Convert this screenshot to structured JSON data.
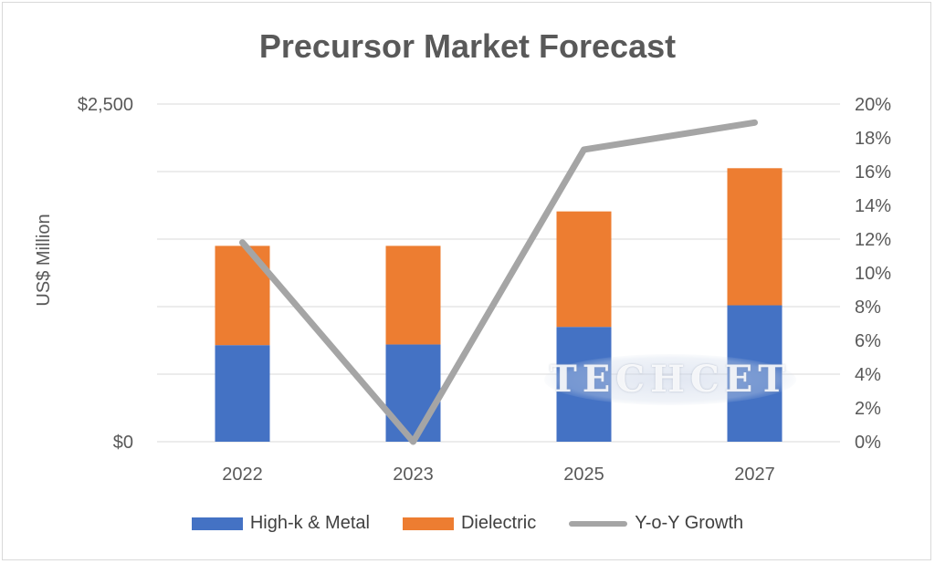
{
  "title": "Precursor Market Forecast",
  "chart_data": {
    "type": "bar",
    "stacked": true,
    "categories": [
      "2022",
      "2023",
      "2025",
      "2027"
    ],
    "series": [
      {
        "name": "High-k & Metal",
        "axis": "left",
        "values": [
          715,
          720,
          850,
          1010
        ],
        "color": "#4472c4"
      },
      {
        "name": "Dielectric",
        "axis": "left",
        "values": [
          735,
          730,
          855,
          1015
        ],
        "color": "#ed7d31"
      },
      {
        "name": "Y-o-Y Growth",
        "axis": "right",
        "type": "line",
        "values": [
          11.8,
          0.0,
          17.3,
          18.9
        ],
        "color": "#a5a5a5"
      }
    ],
    "ylabel": "US$ Million",
    "ylim": [
      0,
      2500
    ],
    "y_ticks": [
      "$2,500",
      "",
      "",
      "",
      "",
      "$0"
    ],
    "y2lim": [
      0,
      20
    ],
    "y2_ticks": [
      "20%",
      "18%",
      "16%",
      "14%",
      "12%",
      "10%",
      "8%",
      "6%",
      "4%",
      "2%",
      "0%"
    ],
    "grid": true,
    "legend_position": "bottom"
  },
  "watermark": "TECHCET"
}
